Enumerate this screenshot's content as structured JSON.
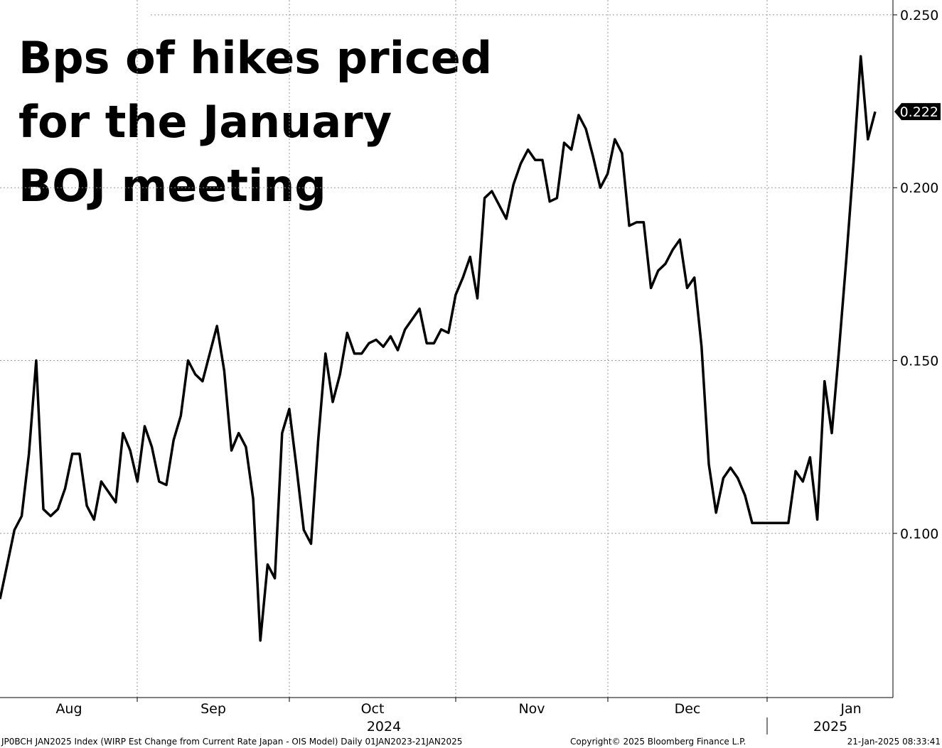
{
  "chart_data": {
    "type": "line",
    "title_lines": [
      "Bps of hikes priced",
      "for the January",
      "BOJ meeting"
    ],
    "x_axis_labels": [
      "Aug",
      "Sep",
      "Oct",
      "Nov",
      "Dec",
      "Jan"
    ],
    "year_labels": [
      "2024",
      "2025"
    ],
    "series": [
      {
        "color": "#000000",
        "values": [
          0.081,
          0.091,
          0.101,
          0.105,
          0.123,
          0.15,
          0.107,
          0.105,
          0.107,
          0.113,
          0.123,
          0.123,
          0.108,
          0.104,
          0.115,
          0.112,
          0.109,
          0.129,
          0.124,
          0.115,
          0.131,
          0.125,
          0.115,
          0.114,
          0.127,
          0.134,
          0.15,
          0.146,
          0.144,
          0.152,
          0.16,
          0.147,
          0.124,
          0.129,
          0.125,
          0.11,
          0.069,
          0.091,
          0.087,
          0.129,
          0.136,
          0.119,
          0.101,
          0.097,
          0.127,
          0.152,
          0.138,
          0.146,
          0.158,
          0.152,
          0.152,
          0.155,
          0.156,
          0.154,
          0.157,
          0.153,
          0.159,
          0.162,
          0.165,
          0.155,
          0.155,
          0.159,
          0.158,
          0.169,
          0.174,
          0.18,
          0.168,
          0.197,
          0.199,
          0.195,
          0.191,
          0.201,
          0.207,
          0.211,
          0.208,
          0.208,
          0.196,
          0.197,
          0.213,
          0.211,
          0.221,
          0.217,
          0.209,
          0.2,
          0.204,
          0.214,
          0.21,
          0.189,
          0.19,
          0.19,
          0.171,
          0.176,
          0.178,
          0.182,
          0.185,
          0.171,
          0.174,
          0.154,
          0.12,
          0.106,
          0.116,
          0.119,
          0.116,
          0.111,
          0.103,
          0.103,
          0.103,
          0.103,
          0.103,
          0.103,
          0.118,
          0.115,
          0.122,
          0.104,
          0.144,
          0.129,
          0.153,
          0.179,
          0.207,
          0.238,
          0.214,
          0.222
        ]
      }
    ],
    "last_value_label": "0.222",
    "ylim": [
      0.0525,
      0.2543
    ],
    "yticks": [
      {
        "value": 0.1,
        "label": "0.100"
      },
      {
        "value": 0.15,
        "label": "0.150"
      },
      {
        "value": 0.2,
        "label": "0.200"
      },
      {
        "value": 0.25,
        "label": "0.250"
      }
    ],
    "grid": true,
    "footer_left": "JP0BCH JAN2025 Index (WIRP Est Change from Current Rate Japan - OIS Model)  Daily 01JAN2023-21JAN2025",
    "footer_center": "Copyright© 2025 Bloomberg Finance L.P.",
    "footer_right": "21-Jan-2025 08:33:41"
  }
}
